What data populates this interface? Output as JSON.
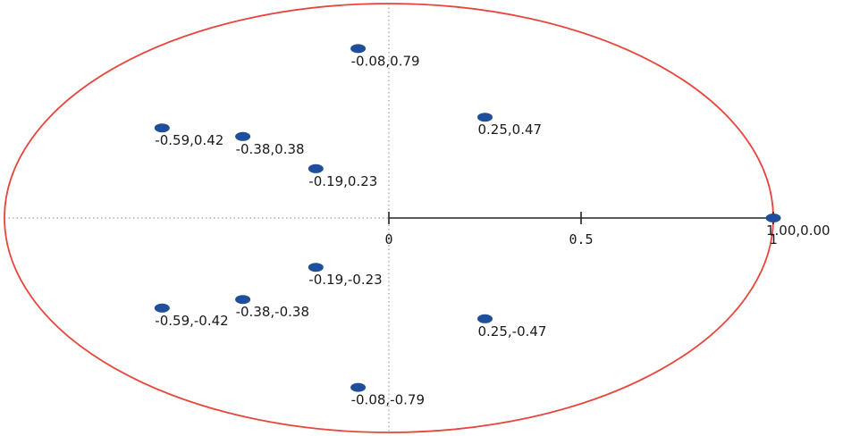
{
  "chart_data": {
    "type": "scatter",
    "title": "",
    "xlabel": "",
    "ylabel": "",
    "xlim": [
      -1,
      1
    ],
    "ylim": [
      -1,
      1
    ],
    "grid": false,
    "legend": "none",
    "unit_circle": true,
    "colors": {
      "circle": "#e8453c",
      "point": "#1f4e9c",
      "axis": "#222222",
      "crosshair": "#888888"
    },
    "x_ticks": [
      {
        "value": 0,
        "label": "0"
      },
      {
        "value": 0.5,
        "label": "0.5"
      },
      {
        "value": 1,
        "label": "1"
      }
    ],
    "points": [
      {
        "x": -0.08,
        "y": 0.79,
        "label": "-0.08,0.79"
      },
      {
        "x": 0.25,
        "y": 0.47,
        "label": "0.25,0.47"
      },
      {
        "x": -0.59,
        "y": 0.42,
        "label": "-0.59,0.42"
      },
      {
        "x": -0.38,
        "y": 0.38,
        "label": "-0.38,0.38"
      },
      {
        "x": -0.19,
        "y": 0.23,
        "label": "-0.19,0.23"
      },
      {
        "x": 1.0,
        "y": 0.0,
        "label": "1.00,0.00"
      },
      {
        "x": -0.19,
        "y": -0.23,
        "label": "-0.19,-0.23"
      },
      {
        "x": -0.59,
        "y": -0.42,
        "label": "-0.59,-0.42"
      },
      {
        "x": -0.38,
        "y": -0.38,
        "label": "-0.38,-0.38"
      },
      {
        "x": 0.25,
        "y": -0.47,
        "label": "0.25,-0.47"
      },
      {
        "x": -0.08,
        "y": -0.79,
        "label": "-0.08,-0.79"
      }
    ]
  }
}
